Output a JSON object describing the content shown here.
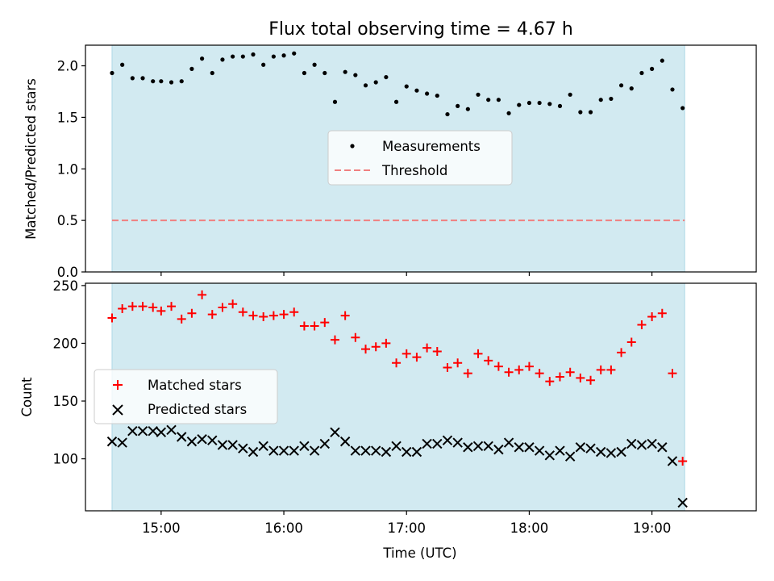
{
  "chart_data": [
    {
      "type": "scatter",
      "title": "Flux total observing time = 4.67 h",
      "ylabel": "Matched/Predicted stars",
      "xlabel": "",
      "ylim": [
        0,
        2.2
      ],
      "yticks": [
        "0.0",
        "0.5",
        "1.0",
        "1.5",
        "2.0"
      ],
      "shaded_interval": [
        "14:36",
        "19:16"
      ],
      "shade_color": "#add8e6",
      "grid": false,
      "legend_position": "center",
      "series": [
        {
          "name": "Measurements",
          "marker": "dot",
          "color": "#000000",
          "x": [
            "14:36",
            "14:41",
            "14:46",
            "14:51",
            "14:56",
            "15:00",
            "15:05",
            "15:10",
            "15:15",
            "15:20",
            "15:25",
            "15:30",
            "15:35",
            "15:40",
            "15:45",
            "15:50",
            "15:55",
            "16:00",
            "16:05",
            "16:10",
            "16:15",
            "16:20",
            "16:25",
            "16:30",
            "16:35",
            "16:40",
            "16:45",
            "16:50",
            "16:55",
            "17:00",
            "17:05",
            "17:10",
            "17:15",
            "17:20",
            "17:25",
            "17:30",
            "17:35",
            "17:40",
            "17:45",
            "17:50",
            "17:55",
            "18:00",
            "18:05",
            "18:10",
            "18:15",
            "18:20",
            "18:25",
            "18:30",
            "18:35",
            "18:40",
            "18:45",
            "18:50",
            "18:55",
            "19:00",
            "19:05",
            "19:10",
            "19:15"
          ],
          "y": [
            1.93,
            2.01,
            1.88,
            1.88,
            1.85,
            1.85,
            1.84,
            1.85,
            1.97,
            2.07,
            1.93,
            2.06,
            2.09,
            2.09,
            2.11,
            2.01,
            2.09,
            2.1,
            2.12,
            1.93,
            2.01,
            1.93,
            1.65,
            1.94,
            1.91,
            1.81,
            1.84,
            1.89,
            1.65,
            1.8,
            1.76,
            1.73,
            1.71,
            1.53,
            1.61,
            1.58,
            1.72,
            1.67,
            1.67,
            1.54,
            1.62,
            1.64,
            1.64,
            1.63,
            1.61,
            1.72,
            1.55,
            1.55,
            1.67,
            1.68,
            1.81,
            1.78,
            1.93,
            1.97,
            2.05,
            1.77,
            1.59
          ]
        },
        {
          "name": "Threshold",
          "type": "line",
          "style": "dashed",
          "color": "#f08080",
          "x": [
            "14:36",
            "19:16"
          ],
          "y": [
            0.5,
            0.5
          ]
        }
      ]
    },
    {
      "type": "scatter",
      "title": "",
      "ylabel": "Count",
      "xlabel": "Time (UTC)",
      "ylim": [
        55,
        252
      ],
      "yticks": [
        "100",
        "150",
        "200",
        "250"
      ],
      "xticks": [
        "15:00",
        "16:00",
        "17:00",
        "18:00",
        "19:00"
      ],
      "xlim": [
        "14:23",
        "19:51"
      ],
      "shaded_interval": [
        "14:36",
        "19:16"
      ],
      "shade_color": "#add8e6",
      "grid": false,
      "legend_position": "center-left",
      "series": [
        {
          "name": "Matched stars",
          "marker": "plus",
          "color": "#ff0000",
          "x": [
            "14:36",
            "14:41",
            "14:46",
            "14:51",
            "14:56",
            "15:00",
            "15:05",
            "15:10",
            "15:15",
            "15:20",
            "15:25",
            "15:30",
            "15:35",
            "15:40",
            "15:45",
            "15:50",
            "15:55",
            "16:00",
            "16:05",
            "16:10",
            "16:15",
            "16:20",
            "16:25",
            "16:30",
            "16:35",
            "16:40",
            "16:45",
            "16:50",
            "16:55",
            "17:00",
            "17:05",
            "17:10",
            "17:15",
            "17:20",
            "17:25",
            "17:30",
            "17:35",
            "17:40",
            "17:45",
            "17:50",
            "17:55",
            "18:00",
            "18:05",
            "18:10",
            "18:15",
            "18:20",
            "18:25",
            "18:30",
            "18:35",
            "18:40",
            "18:45",
            "18:50",
            "18:55",
            "19:00",
            "19:05",
            "19:10",
            "19:15"
          ],
          "y": [
            222,
            230,
            232,
            232,
            231,
            228,
            232,
            221,
            226,
            242,
            225,
            231,
            234,
            227,
            224,
            223,
            224,
            225,
            227,
            215,
            215,
            218,
            203,
            224,
            205,
            195,
            197,
            200,
            183,
            191,
            188,
            196,
            193,
            179,
            183,
            174,
            191,
            185,
            180,
            175,
            177,
            180,
            174,
            167,
            171,
            175,
            170,
            168,
            177,
            177,
            192,
            201,
            216,
            223,
            226,
            174,
            98
          ]
        },
        {
          "name": "Predicted stars",
          "marker": "x",
          "color": "#000000",
          "x": [
            "14:36",
            "14:41",
            "14:46",
            "14:51",
            "14:56",
            "15:00",
            "15:05",
            "15:10",
            "15:15",
            "15:20",
            "15:25",
            "15:30",
            "15:35",
            "15:40",
            "15:45",
            "15:50",
            "15:55",
            "16:00",
            "16:05",
            "16:10",
            "16:15",
            "16:20",
            "16:25",
            "16:30",
            "16:35",
            "16:40",
            "16:45",
            "16:50",
            "16:55",
            "17:00",
            "17:05",
            "17:10",
            "17:15",
            "17:20",
            "17:25",
            "17:30",
            "17:35",
            "17:40",
            "17:45",
            "17:50",
            "17:55",
            "18:00",
            "18:05",
            "18:10",
            "18:15",
            "18:20",
            "18:25",
            "18:30",
            "18:35",
            "18:40",
            "18:45",
            "18:50",
            "18:55",
            "19:00",
            "19:05",
            "19:10",
            "19:15"
          ],
          "y": [
            115,
            114,
            124,
            124,
            124,
            123,
            125,
            119,
            115,
            117,
            116,
            112,
            112,
            109,
            106,
            111,
            107,
            107,
            107,
            111,
            107,
            113,
            123,
            115,
            107,
            107,
            107,
            106,
            111,
            106,
            106,
            113,
            113,
            116,
            114,
            110,
            111,
            111,
            108,
            114,
            110,
            110,
            107,
            103,
            107,
            102,
            110,
            109,
            106,
            105,
            106,
            113,
            112,
            113,
            110,
            98,
            62
          ]
        }
      ]
    }
  ]
}
